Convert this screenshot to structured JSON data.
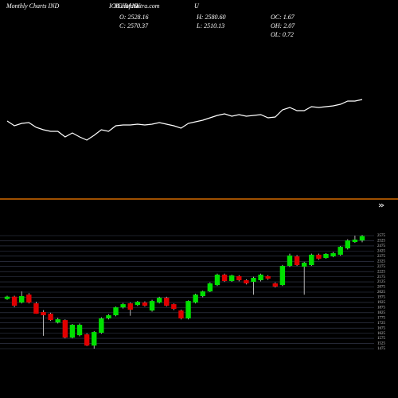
{
  "chart_data": {
    "type": "candlestick",
    "header": {
      "title": "Monthly Charts IND",
      "symbol": "ICICIBANK",
      "site": "MunafaSutra.com",
      "marker": "U"
    },
    "info": [
      "O: 2528.16",
      "C: 2570.37",
      "H: 2580.60",
      "L: 2510.13",
      "OC: 1.67",
      "OH: 2.07",
      "OL: 0.72"
    ],
    "overlay": {
      "type": "line",
      "color": "#ffffff",
      "ylim": [
        0,
        100
      ],
      "values": [
        48,
        42,
        45,
        46,
        40,
        37,
        35,
        35,
        28,
        33,
        28,
        24,
        30,
        37,
        35,
        42,
        43,
        43,
        44,
        43,
        44,
        46,
        44,
        42,
        39,
        45,
        47,
        49,
        52,
        55,
        57,
        54,
        56,
        54,
        55,
        56,
        52,
        53,
        62,
        65,
        61,
        61,
        66,
        65,
        66,
        67,
        69,
        73,
        73,
        75
      ]
    },
    "divider_color": "#ff7f00",
    "up_color": "#00e000",
    "down_color": "#e00000",
    "open": [
      1958,
      1981,
      1924,
      2001,
      1916,
      1831,
      1815,
      1730,
      1753,
      1583,
      1606,
      1614,
      1505,
      1630,
      1769,
      1800,
      1877,
      1916,
      1900,
      1924,
      1846,
      1924,
      1970,
      1908,
      1846,
      1769,
      1924,
      1986,
      2032,
      2094,
      2195,
      2133,
      2180,
      2141,
      2125,
      2141,
      2180,
      2110,
      2094,
      2280,
      2373,
      2273,
      2288,
      2389,
      2358,
      2373,
      2389,
      2451,
      2513,
      2528.16
    ],
    "high": [
      1990,
      1990,
      2032,
      2015,
      1930,
      1850,
      1825,
      1775,
      1760,
      1715,
      1720,
      1625,
      1645,
      1780,
      1810,
      1885,
      1920,
      1925,
      1940,
      1935,
      1950,
      1980,
      1980,
      1915,
      1855,
      1945,
      2010,
      2040,
      2120,
      2205,
      2205,
      2195,
      2190,
      2150,
      2175,
      2205,
      2190,
      2120,
      2290,
      2400,
      2385,
      2320,
      2400,
      2400,
      2405,
      2415,
      2475,
      2540,
      2575,
      2580.6
    ],
    "low": [
      1950,
      1880,
      1915,
      1915,
      1815,
      1600,
      1745,
      1720,
      1575,
      1575,
      1595,
      1500,
      1475,
      1620,
      1760,
      1790,
      1865,
      1795,
      1890,
      1885,
      1835,
      1915,
      1885,
      1850,
      1760,
      1760,
      1915,
      1975,
      2025,
      2085,
      2125,
      2125,
      2130,
      2100,
      2000,
      2130,
      2145,
      2070,
      2085,
      2270,
      2280,
      2000,
      2280,
      2340,
      2350,
      2365,
      2380,
      2440,
      2505,
      2510.13
    ],
    "close": [
      1981,
      1893,
      1986,
      1924,
      1815,
      1800,
      1753,
      1761,
      1583,
      1707,
      1707,
      1505,
      1637,
      1769,
      1800,
      1877,
      1908,
      1854,
      1931,
      1893,
      1939,
      1970,
      1893,
      1862,
      1769,
      1939,
      2001,
      2032,
      2110,
      2195,
      2133,
      2187,
      2141,
      2110,
      2164,
      2195,
      2156,
      2079,
      2280,
      2381,
      2288,
      2311,
      2389,
      2350,
      2397,
      2404,
      2466,
      2528,
      2536,
      2570.37
    ],
    "ylim": [
      1475,
      2575
    ],
    "yticks": [
      2575,
      2525,
      2475,
      2425,
      2375,
      2325,
      2275,
      2225,
      2175,
      2125,
      2075,
      2025,
      1975,
      1925,
      1875,
      1825,
      1775,
      1725,
      1675,
      1625,
      1575,
      1525,
      1475
    ],
    "grid": true
  }
}
